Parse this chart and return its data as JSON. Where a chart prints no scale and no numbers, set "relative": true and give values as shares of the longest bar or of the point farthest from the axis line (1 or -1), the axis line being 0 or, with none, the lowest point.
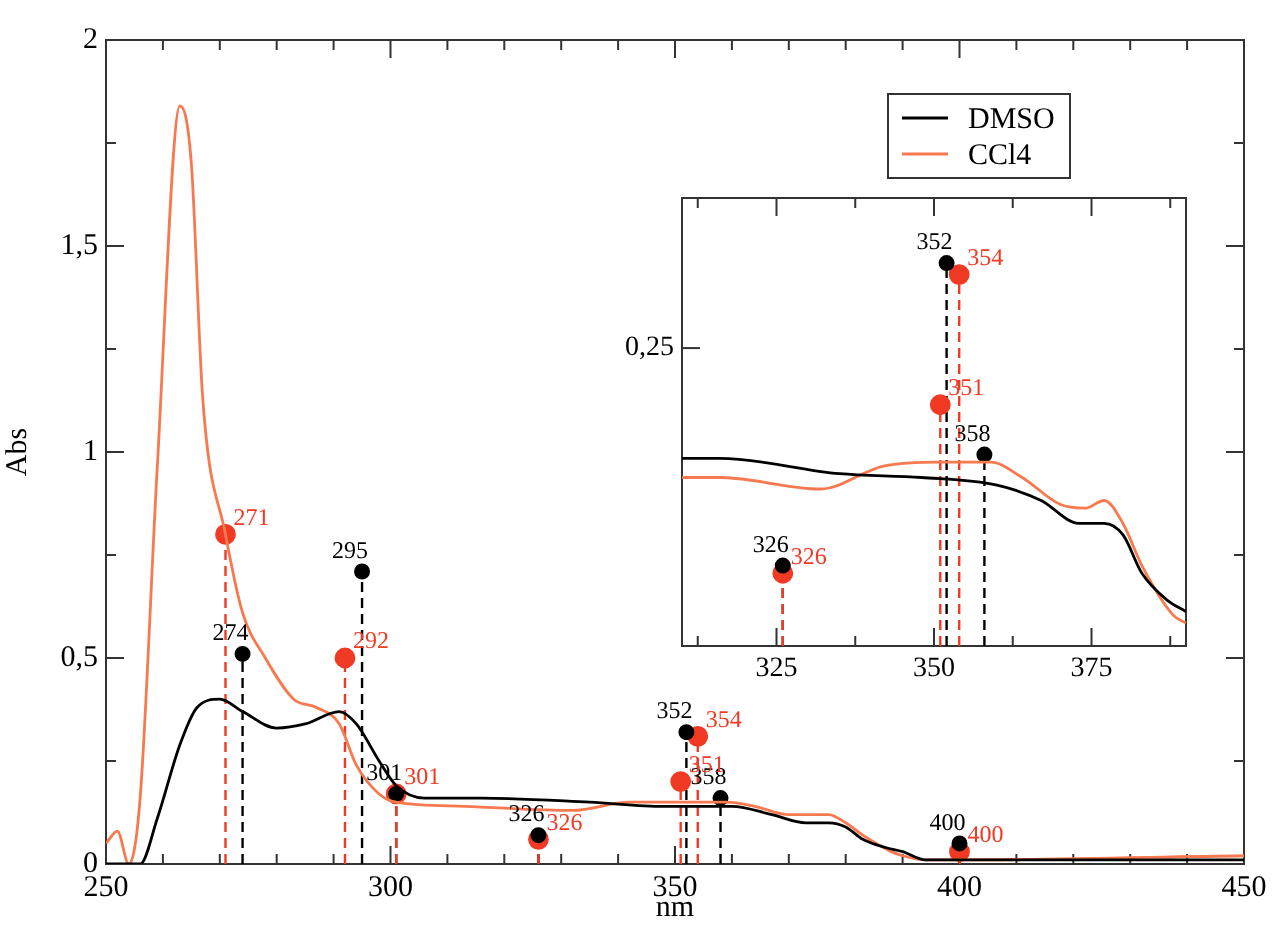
{
  "chart_data": [
    {
      "type": "line",
      "xlabel": "nm",
      "ylabel": "Abs",
      "legend": "top right",
      "xlim": [
        250,
        450
      ],
      "ylim": [
        0,
        2
      ],
      "xticks": [
        250,
        {
          "value": 260,
          "label": null
        },
        {
          "value": 270,
          "label": null
        },
        {
          "value": 280,
          "label": null
        },
        {
          "value": 290,
          "label": null
        },
        300,
        {
          "value": 310,
          "label": null
        },
        {
          "value": 320,
          "label": null
        },
        {
          "value": 330,
          "label": null
        },
        {
          "value": 340,
          "label": null
        },
        350,
        {
          "value": 360,
          "label": null
        },
        {
          "value": 370,
          "label": null
        },
        {
          "value": 380,
          "label": null
        },
        {
          "value": 390,
          "label": null
        },
        400,
        {
          "value": 410,
          "label": null
        },
        {
          "value": 420,
          "label": null
        },
        {
          "value": 430,
          "label": null
        },
        {
          "value": 440,
          "label": null
        },
        450
      ],
      "yticks": [
        0,
        {
          "value": 0.25,
          "label": null
        },
        {
          "value": 0.5,
          "label": "0,5"
        },
        {
          "value": 0.75,
          "label": null
        },
        1,
        {
          "value": 1.25,
          "label": null
        },
        {
          "value": 1.5,
          "label": "1,5"
        },
        {
          "value": 1.75,
          "label": null
        },
        2
      ],
      "series": [
        {
          "name": "DMSO",
          "color": "#000000",
          "marker": "none",
          "line_style": "solid",
          "x": [
            250,
            256,
            259,
            263,
            266,
            270,
            274,
            280,
            285,
            291,
            294,
            298,
            301,
            306,
            316,
            335,
            348,
            360,
            367,
            373,
            377,
            380,
            383,
            387,
            390,
            394,
            399,
            450
          ],
          "values": [
            0,
            0,
            0.11,
            0.29,
            0.38,
            0.4,
            0.37,
            0.33,
            0.34,
            0.37,
            0.34,
            0.25,
            0.19,
            0.16,
            0.16,
            0.15,
            0.14,
            0.14,
            0.12,
            0.1,
            0.1,
            0.09,
            0.06,
            0.04,
            0.03,
            0.01,
            0.01,
            0.01
          ]
        },
        {
          "name": "CCl4",
          "color": "#f7794f",
          "marker": "none",
          "line_style": "solid",
          "x": [
            250,
            252,
            254,
            256,
            259,
            263,
            265,
            267,
            271,
            274,
            278,
            283,
            287,
            291,
            294,
            298,
            301,
            313,
            332,
            342,
            351,
            359,
            364,
            370,
            374,
            377,
            380,
            383,
            388,
            390,
            394,
            400,
            450
          ],
          "values": [
            0.05,
            0.08,
            0,
            0.16,
            0.96,
            1.84,
            1.7,
            1.13,
            0.8,
            0.61,
            0.5,
            0.4,
            0.38,
            0.34,
            0.24,
            0.17,
            0.15,
            0.14,
            0.13,
            0.15,
            0.15,
            0.15,
            0.14,
            0.12,
            0.12,
            0.12,
            0.1,
            0.07,
            0.03,
            0.02,
            0.01,
            0.01,
            0.02
          ]
        },
        {
          "type": "lollipop",
          "color": "#000000",
          "marker": "circle",
          "line_style": "dashed",
          "x": [
            274,
            295,
            301,
            326,
            352,
            358,
            400
          ],
          "values": [
            0.51,
            0.71,
            0.17,
            0.07,
            0.32,
            0.16,
            0.05
          ]
        },
        {
          "type": "lollipop",
          "color": "#f03a24",
          "marker": "circle",
          "line_style": "dashed",
          "x": [
            271,
            292,
            301,
            326,
            351,
            354,
            400
          ],
          "values": [
            0.8,
            0.5,
            0.17,
            0.06,
            0.2,
            0.31,
            0.03
          ]
        }
      ],
      "annotations": [
        {
          "text": "274",
          "x": 274,
          "y": 0.51
        },
        {
          "text": "295",
          "x": 295,
          "y": 0.71
        },
        {
          "text": "301",
          "x": 301,
          "y": 0.17
        },
        {
          "text": "326",
          "x": 326,
          "y": 0.07
        },
        {
          "text": "352",
          "x": 352,
          "y": 0.32
        },
        {
          "text": "358",
          "x": 358,
          "y": 0.16
        },
        {
          "text": "400",
          "x": 400,
          "y": 0.05
        },
        {
          "text": "271",
          "x": 271,
          "y": 0.8
        },
        {
          "text": "292",
          "x": 292,
          "y": 0.5
        },
        {
          "text": "301",
          "x": 301,
          "y": 0.17
        },
        {
          "text": "326",
          "x": 326,
          "y": 0.06
        },
        {
          "text": "351",
          "x": 351,
          "y": 0.2
        },
        {
          "text": "354",
          "x": 354,
          "y": 0.31
        },
        {
          "text": "400",
          "x": 400,
          "y": 0.03
        }
      ]
    },
    {
      "type": "line",
      "relative": true,
      "xlim": [
        310,
        390
      ],
      "xticks": [
        {
          "value": 312.5,
          "label": null
        },
        325,
        {
          "value": 337.5,
          "label": null
        },
        350,
        {
          "value": 362.5,
          "label": null
        },
        375,
        {
          "value": 387.5,
          "label": null
        }
      ],
      "series": [
        {
          "color": "#000000",
          "marker": "none",
          "line_style": "solid",
          "x": [
            310,
            316,
            335,
            348,
            360,
            367,
            373,
            377,
            380,
            383,
            387,
            390
          ],
          "values": [
            0.49,
            0.49,
            0.45,
            0.44,
            0.42,
            0.38,
            0.32,
            0.32,
            0.29,
            0.19,
            0.12,
            0.09
          ]
        },
        {
          "color": "#f7794f",
          "marker": "none",
          "line_style": "solid",
          "x": [
            310,
            316,
            332,
            342,
            351,
            359,
            364,
            370,
            374,
            377,
            380,
            383,
            388,
            390
          ],
          "values": [
            0.44,
            0.44,
            0.41,
            0.47,
            0.48,
            0.48,
            0.44,
            0.37,
            0.36,
            0.38,
            0.32,
            0.21,
            0.08,
            0.06
          ]
        },
        {
          "type": "lollipop",
          "color": "#000000",
          "marker": "circle",
          "line_style": "dashed",
          "x": [
            326,
            352,
            358
          ],
          "values": [
            0.21,
            1,
            0.5
          ]
        },
        {
          "type": "lollipop",
          "color": "#f03a24",
          "marker": "circle",
          "line_style": "dashed",
          "x": [
            326,
            351,
            354
          ],
          "values": [
            0.19,
            0.63,
            0.97
          ]
        }
      ],
      "annotations": [
        {
          "text": "326",
          "x": 326,
          "y": 0.21
        },
        {
          "text": "352",
          "x": 352,
          "y": 1
        },
        {
          "text": "358",
          "x": 358,
          "y": 0.5
        },
        {
          "text": "326",
          "x": 326,
          "y": 0.19
        },
        {
          "text": "351",
          "x": 351,
          "y": 0.63
        },
        {
          "text": "354",
          "x": 354,
          "y": 0.97
        },
        "0,25"
      ]
    }
  ]
}
